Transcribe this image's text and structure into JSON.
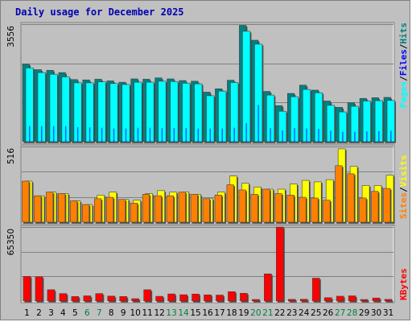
{
  "title": "Daily usage for December 2025",
  "colors": {
    "hits": "#008080",
    "files": "#0000ff",
    "pages": "#00ffff",
    "visits": "#ffff00",
    "sites": "#ff8000",
    "kbytes": "#ff0000",
    "weekend_label": "#008040"
  },
  "legend": {
    "hits": "Hits",
    "files": "Files",
    "pages": "Pages",
    "visits": "Visits",
    "sites": "Sites",
    "kbytes": "KBytes",
    "sep": "/"
  },
  "chart_data": [
    {
      "type": "bar",
      "categories": [
        "1",
        "2",
        "3",
        "4",
        "5",
        "6",
        "7",
        "8",
        "9",
        "10",
        "11",
        "12",
        "13",
        "14",
        "15",
        "16",
        "17",
        "18",
        "19",
        "20",
        "21",
        "22",
        "23",
        "24",
        "25",
        "26",
        "27",
        "28",
        "29",
        "30",
        "31"
      ],
      "weekend_categories": [
        "6",
        "7",
        "13",
        "14",
        "20",
        "21",
        "27",
        "28"
      ],
      "ylim": [
        0,
        3556
      ],
      "max_label": "3556",
      "grid": true,
      "series": [
        {
          "name": "Hits",
          "values": [
            2350,
            2180,
            2160,
            2090,
            1880,
            1870,
            1890,
            1840,
            1800,
            1900,
            1890,
            1930,
            1900,
            1850,
            1830,
            1500,
            1600,
            1860,
            3520,
            3070,
            1520,
            1090,
            1460,
            1710,
            1560,
            1230,
            1040,
            1180,
            1310,
            1330,
            1340
          ]
        },
        {
          "name": "Files",
          "values": [
            470,
            470,
            470,
            470,
            440,
            430,
            420,
            400,
            400,
            420,
            420,
            410,
            410,
            410,
            400,
            400,
            400,
            420,
            560,
            1110,
            410,
            340,
            410,
            400,
            390,
            330,
            300,
            300,
            310,
            320,
            330
          ]
        },
        {
          "name": "Pages",
          "values": [
            2230,
            2090,
            2040,
            1960,
            1780,
            1780,
            1810,
            1760,
            1730,
            1800,
            1800,
            1830,
            1820,
            1770,
            1750,
            1390,
            1530,
            1790,
            3340,
            2950,
            1410,
            920,
            1360,
            1580,
            1480,
            1100,
            900,
            1070,
            1230,
            1240,
            1250
          ]
        }
      ]
    },
    {
      "type": "bar",
      "categories": [
        "1",
        "2",
        "3",
        "4",
        "5",
        "6",
        "7",
        "8",
        "9",
        "10",
        "11",
        "12",
        "13",
        "14",
        "15",
        "16",
        "17",
        "18",
        "19",
        "20",
        "21",
        "22",
        "23",
        "24",
        "25",
        "26",
        "27",
        "28",
        "29",
        "30",
        "31"
      ],
      "ylim": [
        0,
        516
      ],
      "max_label": "516",
      "grid": true,
      "series": [
        {
          "name": "Visits",
          "values": [
            280,
            180,
            205,
            195,
            145,
            120,
            185,
            205,
            155,
            150,
            195,
            215,
            205,
            205,
            190,
            160,
            205,
            315,
            265,
            240,
            225,
            225,
            260,
            285,
            275,
            290,
            500,
            380,
            250,
            250,
            320
          ]
        },
        {
          "name": "Sites",
          "values": [
            280,
            180,
            205,
            195,
            145,
            120,
            160,
            170,
            155,
            130,
            190,
            180,
            180,
            205,
            190,
            160,
            185,
            255,
            220,
            190,
            225,
            195,
            185,
            170,
            165,
            150,
            385,
            330,
            165,
            210,
            230
          ]
        }
      ]
    },
    {
      "type": "bar",
      "categories": [
        "1",
        "2",
        "3",
        "4",
        "5",
        "6",
        "7",
        "8",
        "9",
        "10",
        "11",
        "12",
        "13",
        "14",
        "15",
        "16",
        "17",
        "18",
        "19",
        "20",
        "21",
        "22",
        "23",
        "24",
        "25",
        "26",
        "27",
        "28",
        "29",
        "30",
        "31"
      ],
      "ylim": [
        0,
        65350
      ],
      "max_label": "65350",
      "grid": true,
      "series": [
        {
          "name": "KBytes",
          "values": [
            21800,
            21500,
            10000,
            6600,
            4000,
            4600,
            6600,
            4400,
            4000,
            2100,
            10000,
            4200,
            6300,
            5600,
            6200,
            5500,
            5300,
            8300,
            6900,
            1400,
            24000,
            65300,
            1500,
            1600,
            20200,
            3000,
            4300,
            4600,
            1400,
            2700,
            1500
          ]
        }
      ]
    }
  ]
}
